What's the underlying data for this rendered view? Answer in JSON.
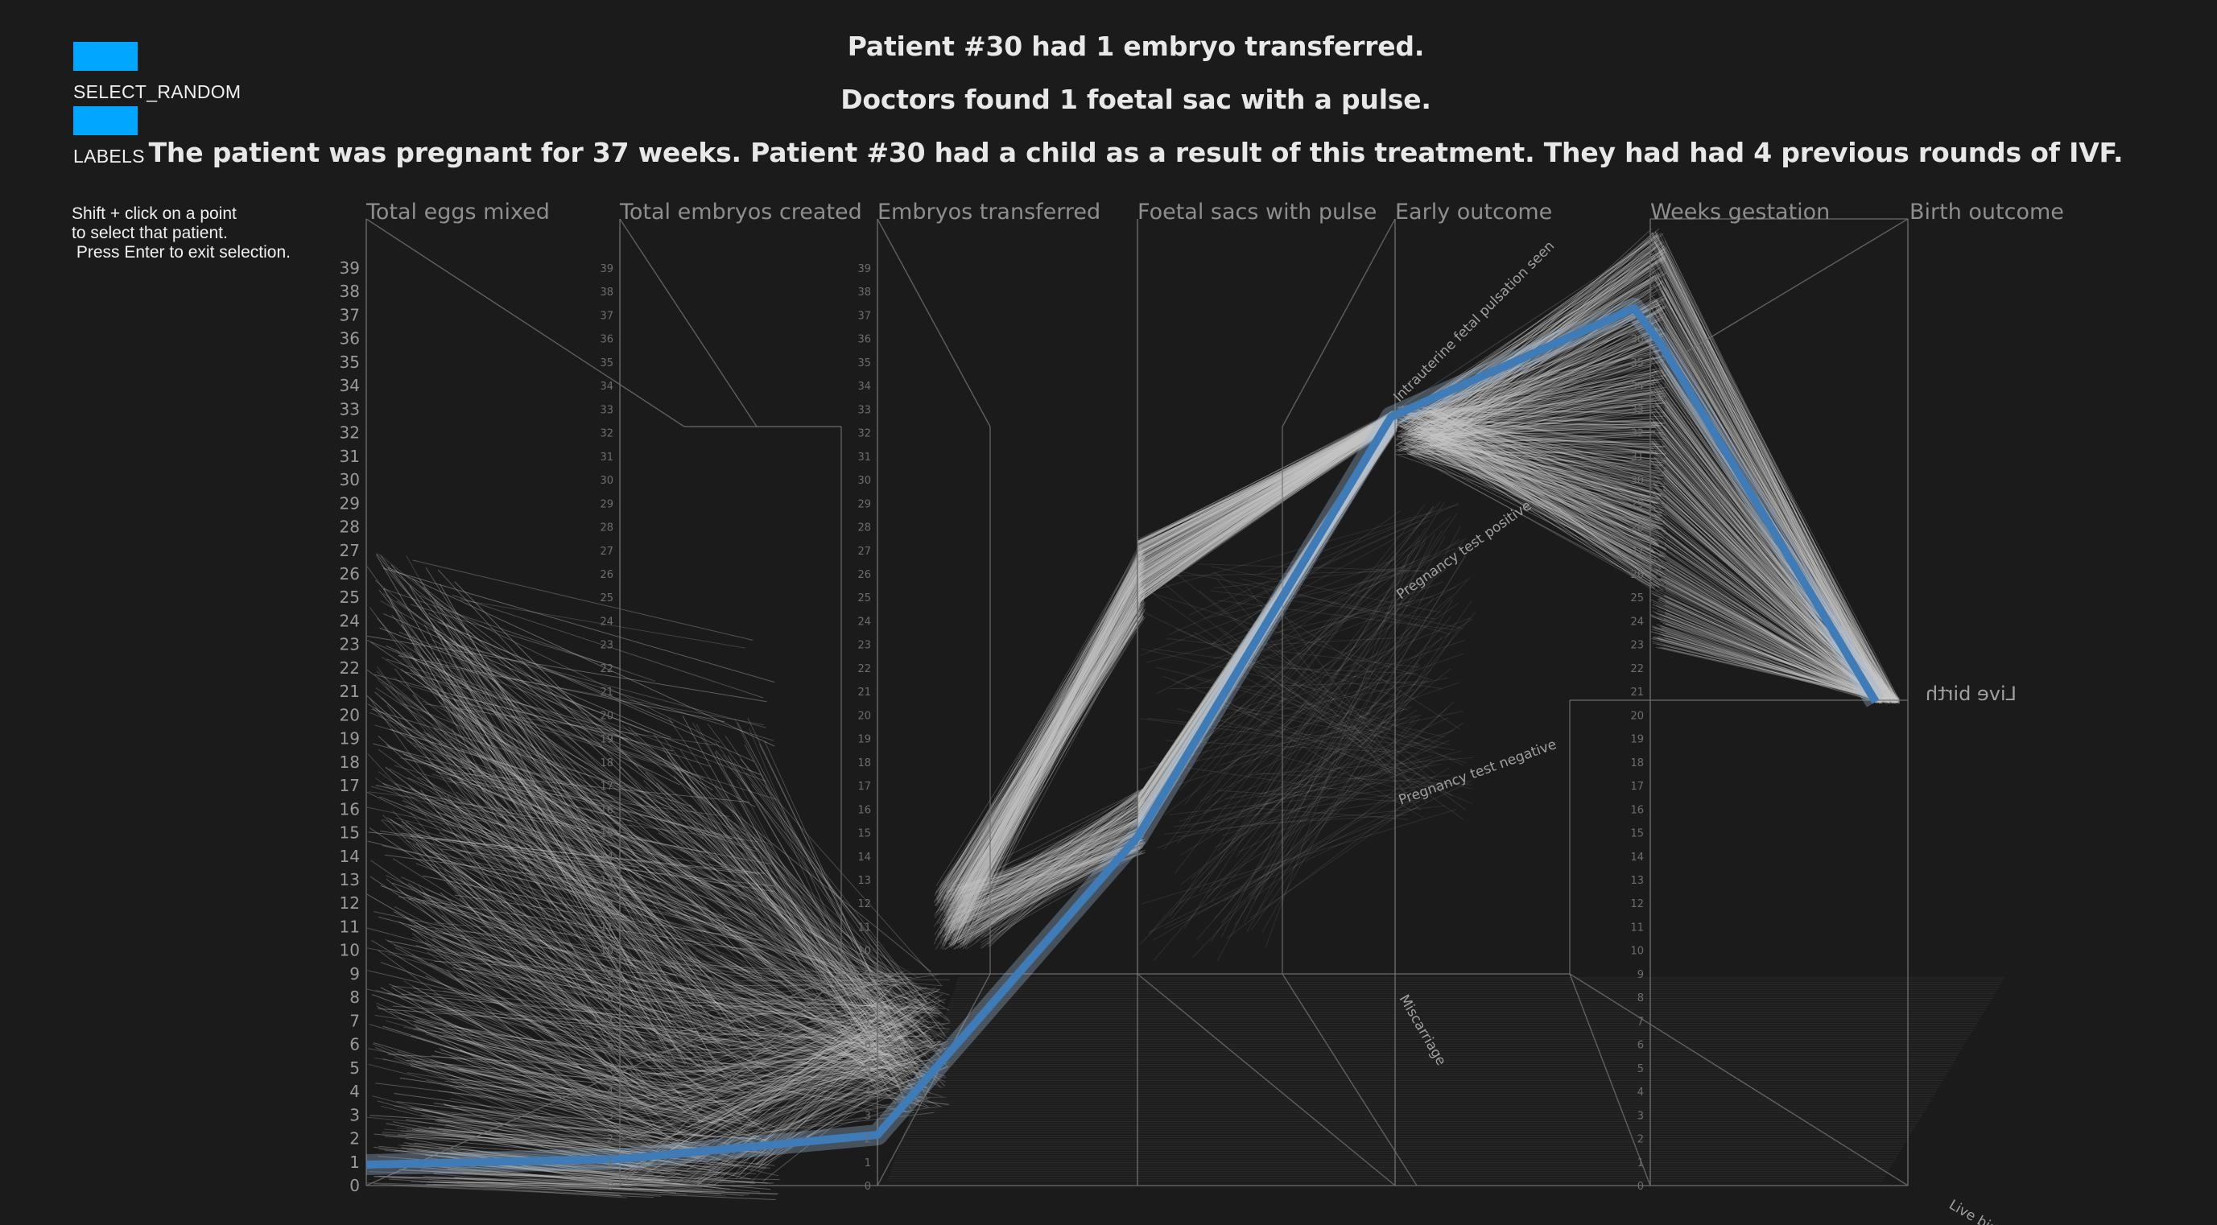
{
  "controls": {
    "select_random_label": "SELECT_RANDOM",
    "labels_label": "LABELS",
    "button_color": "#00a6ff"
  },
  "help_text": "Shift + click on a point\nto select that patient.\n Press Enter to exit selection.",
  "headlines": {
    "line1": "Patient #30 had 1 embryo transferred.",
    "line2": "Doctors found 1 foetal sac with a pulse.",
    "line3": "The patient was pregnant for 37 weeks. Patient #30 had a child as a result of this treatment. They had had 4 previous rounds of IVF."
  },
  "chart_data": {
    "type": "parallel-coordinates",
    "axes": [
      "Total eggs mixed",
      "Total embryos created",
      "Embryos transferred",
      "Foetal sacs with pulse",
      "Early outcome",
      "Weeks gestation",
      "Birth outcome"
    ],
    "y_ticks": [
      0,
      1,
      2,
      3,
      4,
      5,
      6,
      7,
      8,
      9,
      10,
      11,
      12,
      13,
      14,
      15,
      16,
      17,
      18,
      19,
      20,
      21,
      22,
      23,
      24,
      25,
      26,
      27,
      28,
      29,
      30,
      31,
      32,
      33,
      34,
      35,
      36,
      37,
      38,
      39
    ],
    "category_labels": {
      "early_outcome": [
        "Intrauterine fetal pulsation seen",
        "Pregnancy test positive",
        "Pregnancy test negative",
        "Miscarriage"
      ],
      "birth_outcome": [
        "Live birth"
      ]
    },
    "selected_patient": {
      "id": 30,
      "values": [
        1,
        1,
        1,
        1,
        "Intrauterine fetal pulsation seen",
        37,
        "Live birth"
      ],
      "previous_ivf_rounds": 4
    },
    "colors": {
      "background": "#1b1b1b",
      "lines": "#c8c8c8",
      "highlight": "#3f7bb6"
    }
  }
}
